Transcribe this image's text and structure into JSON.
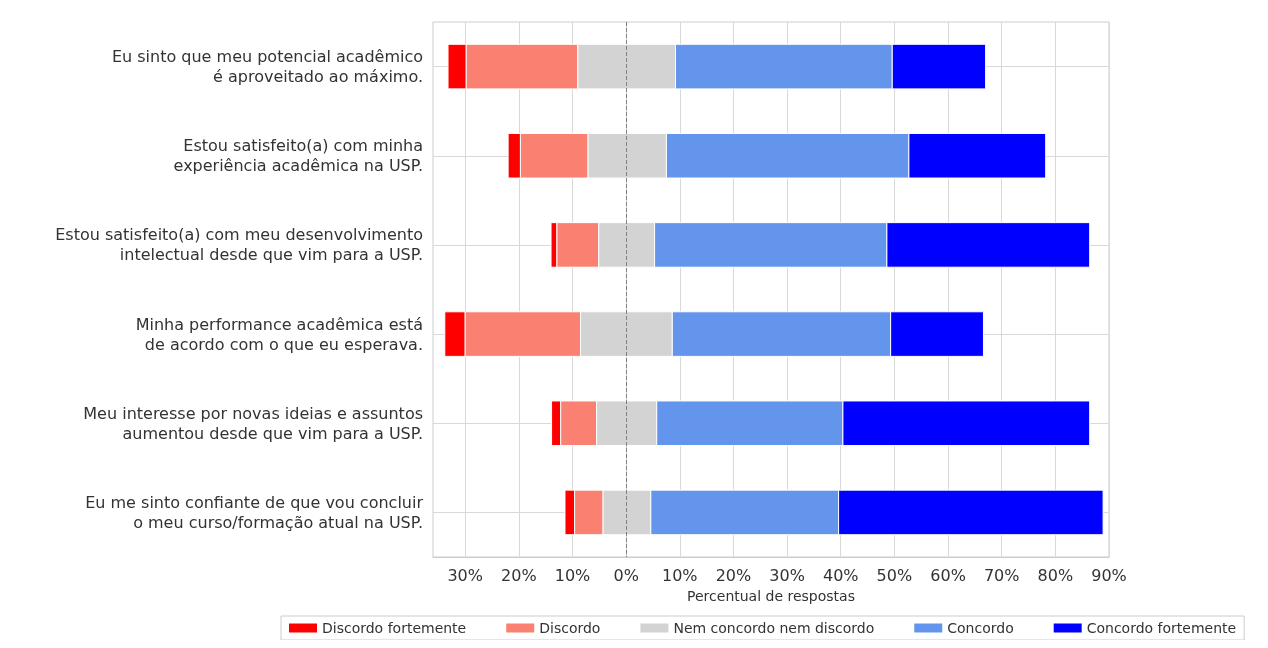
{
  "chart_data": {
    "type": "bar",
    "orientation": "horizontal",
    "xlabel": "Percentual de respostas",
    "categories": [
      "Eu sinto que meu potencial acadêmico\né aproveitado ao máximo.",
      "Estou satisfeito(a) com minha\nexperiência acadêmica na USP.",
      "Estou satisfeito(a) com meu desenvolvimento\nintelectual desde que vim para a USP.",
      "Minha performance acadêmica está\nde acordo com o que eu esperava.",
      "Meu interesse por novas ideias e assuntos\naumentou desde que vim para a USP.",
      "Eu me sinto confiante de que vou concluir\no meu curso/formação atual na USP."
    ],
    "series": [
      {
        "name": "Discordo fortemente",
        "color": "#ff0000",
        "base": [
          -33.2,
          -22.0,
          -14.0,
          -33.8,
          -13.9,
          -11.4
        ],
        "values": [
          3.4,
          2.3,
          1.1,
          3.8,
          1.7,
          1.8
        ]
      },
      {
        "name": "Discordo",
        "color": "#fa8072",
        "base": [
          -29.8,
          -19.7,
          -12.9,
          -30.0,
          -12.2,
          -9.6
        ],
        "values": [
          20.8,
          12.6,
          7.8,
          21.5,
          6.7,
          5.3
        ]
      },
      {
        "name": "Nem concordo nem discordo",
        "color": "#d3d3d3",
        "base": [
          -9.0,
          -7.1,
          -5.1,
          -8.5,
          -5.5,
          -4.3
        ],
        "values": [
          18.2,
          14.6,
          10.4,
          17.1,
          11.2,
          8.9
        ]
      },
      {
        "name": "Concordo",
        "color": "#6495ed",
        "base": [
          9.2,
          7.5,
          5.3,
          8.6,
          5.7,
          4.6
        ],
        "values": [
          40.4,
          45.2,
          43.3,
          40.7,
          34.7,
          35.0
        ]
      },
      {
        "name": "Concordo fortemente",
        "color": "#0000ff",
        "base": [
          49.6,
          52.7,
          48.6,
          49.3,
          40.4,
          39.6
        ],
        "values": [
          17.4,
          25.5,
          37.8,
          17.3,
          46.0,
          49.3
        ]
      }
    ],
    "xlim": [
      -36,
      90
    ],
    "xticks": [
      {
        "value": -30,
        "label": "30%"
      },
      {
        "value": -20,
        "label": "20%"
      },
      {
        "value": -10,
        "label": "10%"
      },
      {
        "value": 0,
        "label": "0%"
      },
      {
        "value": 10,
        "label": "10%"
      },
      {
        "value": 20,
        "label": "20%"
      },
      {
        "value": 30,
        "label": "30%"
      },
      {
        "value": 40,
        "label": "40%"
      },
      {
        "value": 50,
        "label": "50%"
      },
      {
        "value": 60,
        "label": "60%"
      },
      {
        "value": 70,
        "label": "70%"
      },
      {
        "value": 80,
        "label": "80%"
      },
      {
        "value": 90,
        "label": "90%"
      }
    ],
    "ref_lines": [
      {
        "axis": "x",
        "value": 0,
        "color": "#808080",
        "line_style": "dashed"
      }
    ],
    "grid": true,
    "legend": "bottom"
  }
}
